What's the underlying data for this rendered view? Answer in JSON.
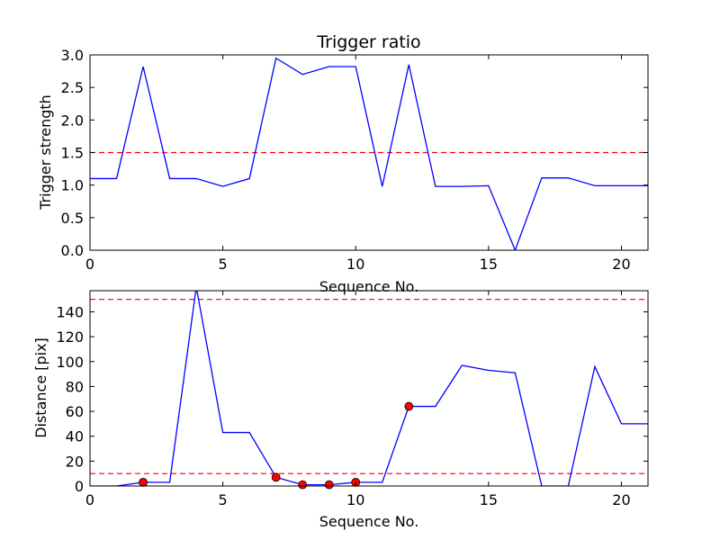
{
  "chart_data": [
    {
      "type": "line",
      "title": "Trigger ratio",
      "xlabel": "Sequence No.",
      "ylabel": "Trigger strength",
      "xlim": [
        0,
        21
      ],
      "ylim": [
        0,
        3.0
      ],
      "grid": false,
      "x_ticks": [
        0,
        5,
        10,
        15,
        20
      ],
      "x_tick_labels": [
        "0",
        "5",
        "10",
        "15",
        "20"
      ],
      "y_ticks": [
        0,
        0.5,
        1.0,
        1.5,
        2.0,
        2.5,
        3.0
      ],
      "y_tick_labels": [
        "0.0",
        "0.5",
        "1.0",
        "1.5",
        "2.0",
        "2.5",
        "3.0"
      ],
      "series": [
        {
          "color": "#0000ff",
          "x": [
            0,
            1,
            2,
            3,
            4,
            5,
            6,
            7,
            8,
            9,
            10,
            11,
            12,
            13,
            14,
            15,
            16,
            17,
            18,
            19,
            20,
            21
          ],
          "y": [
            1.1,
            1.1,
            2.82,
            1.1,
            1.1,
            0.98,
            1.1,
            2.95,
            2.7,
            2.82,
            2.82,
            0.98,
            2.85,
            0.98,
            0.98,
            0.99,
            0.0,
            1.11,
            1.11,
            0.99,
            0.99,
            0.99
          ]
        }
      ],
      "thresholds": [
        {
          "y": 1.5,
          "color": "#ff0000",
          "style": "dashed"
        }
      ]
    },
    {
      "type": "line",
      "title": "",
      "xlabel": "Sequence No.",
      "ylabel": "Distance [pix]",
      "xlim": [
        0,
        21
      ],
      "ylim": [
        0,
        157
      ],
      "grid": false,
      "x_ticks": [
        0,
        5,
        10,
        15,
        20
      ],
      "x_tick_labels": [
        "0",
        "5",
        "10",
        "15",
        "20"
      ],
      "y_ticks": [
        0,
        20,
        40,
        60,
        80,
        100,
        120,
        140
      ],
      "y_tick_labels": [
        "0",
        "20",
        "40",
        "60",
        "80",
        "100",
        "120",
        "140"
      ],
      "series": [
        {
          "color": "#0000ff",
          "x": [
            0,
            1,
            2,
            3,
            4,
            5,
            6,
            7,
            8,
            9,
            10,
            11,
            12,
            13,
            14,
            15,
            16,
            17,
            18,
            19,
            20,
            21
          ],
          "y": [
            0,
            0,
            3,
            3,
            160,
            43,
            43,
            7,
            1,
            1,
            3,
            3,
            64,
            64,
            97,
            93,
            91,
            0,
            0,
            96,
            50,
            50
          ]
        }
      ],
      "markers": {
        "color": "#ff0000",
        "x": [
          2,
          7,
          8,
          9,
          10,
          12
        ],
        "y": [
          3,
          7,
          1,
          1,
          3,
          64
        ]
      },
      "thresholds": [
        {
          "y": 10,
          "color": "#ff0000",
          "style": "dashed"
        },
        {
          "y": 150,
          "color": "#ff0000",
          "style": "dashed"
        }
      ]
    }
  ]
}
